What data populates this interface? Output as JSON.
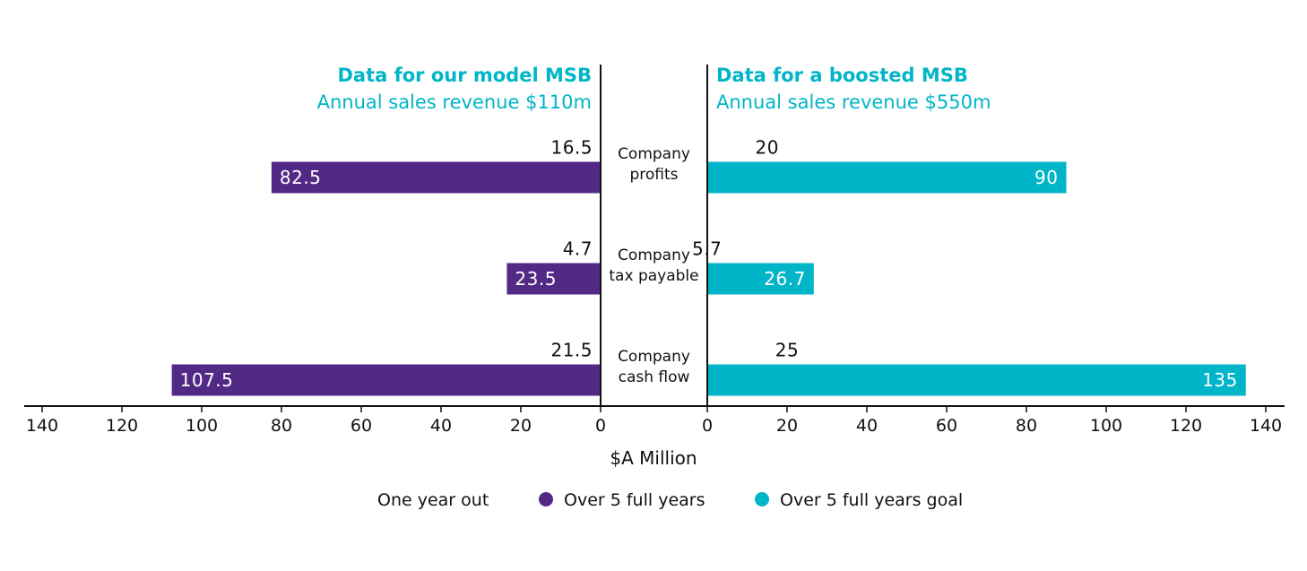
{
  "chart_data": {
    "type": "bar",
    "orientation": "horizontal-butterfly",
    "colors": {
      "left": "#522a86",
      "right": "#00b5c7"
    },
    "left_panel": {
      "title": "Data for our model MSB",
      "subtitle": "Annual sales revenue $110m"
    },
    "right_panel": {
      "title": "Data for a boosted MSB",
      "subtitle": "Annual sales revenue $550m"
    },
    "categories": [
      {
        "line1": "Company",
        "line2": "profits"
      },
      {
        "line1": "Company",
        "line2": "tax payable"
      },
      {
        "line1": "Company",
        "line2": "cash flow"
      }
    ],
    "series": {
      "left": {
        "one_year_out": [
          16.5,
          4.7,
          21.5
        ],
        "over_5_full_years": [
          82.5,
          23.5,
          107.5
        ],
        "one_year_out_labels": [
          "16.5",
          "4.7",
          "21.5"
        ],
        "over_5_full_years_labels": [
          "82.5",
          "23.5",
          "107.5"
        ]
      },
      "right": {
        "one_year_out": [
          20,
          5.7,
          25
        ],
        "over_5_full_years_goal": [
          90,
          26.7,
          135
        ],
        "one_year_out_labels": [
          "20",
          "5.7",
          "25"
        ],
        "over_5_full_years_goal_labels": [
          "90",
          "26.7",
          "135"
        ]
      }
    },
    "xlim": [
      0,
      140
    ],
    "xticks": [
      "0",
      "20",
      "40",
      "60",
      "80",
      "100",
      "120",
      "140"
    ],
    "xlabel": "$A Million",
    "legend": {
      "placement": "bottom",
      "items": [
        {
          "label": "One year out",
          "marker": "none"
        },
        {
          "label": "Over 5 full years",
          "color": "#522a86"
        },
        {
          "label": "Over 5 full years goal",
          "color": "#00b5c7"
        }
      ]
    }
  }
}
